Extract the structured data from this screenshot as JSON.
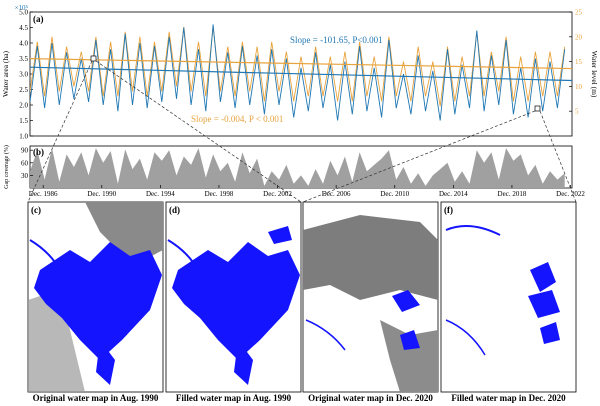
{
  "chart_data": [
    {
      "type": "line",
      "panel_label": "(a)",
      "ylabel": "Water area (ha)",
      "y2label": "Water level (m)",
      "y_exponent": "×10⁵",
      "ylim": [
        1.0,
        5.0
      ],
      "y2lim": [
        0,
        25
      ],
      "yticks": [
        "1.0",
        "1.5",
        "2.0",
        "2.5",
        "3.0",
        "3.5",
        "4.0",
        "4.5",
        "5.0"
      ],
      "y2ticks": [
        "5",
        "10",
        "15",
        "20",
        "25"
      ],
      "xlim": [
        1986,
        2023
      ],
      "series": [
        {
          "name": "Water area",
          "color": "#1f77b4",
          "axis": "left",
          "trend": {
            "start": 3.22,
            "end": 2.79
          },
          "annotation": "Slope = -101.65, P<0.001",
          "x": [
            1986.0,
            1986.5,
            1987.0,
            1987.5,
            1988.0,
            1988.5,
            1989.0,
            1989.5,
            1990.0,
            1990.5,
            1991.0,
            1991.5,
            1992.0,
            1992.5,
            1993.0,
            1993.5,
            1994.0,
            1994.5,
            1995.0,
            1995.5,
            1996.0,
            1996.5,
            1997.0,
            1997.5,
            1998.0,
            1998.5,
            1999.0,
            1999.5,
            2000.0,
            2000.5,
            2001.0,
            2001.5,
            2002.0,
            2002.5,
            2003.0,
            2003.5,
            2004.0,
            2004.5,
            2005.0,
            2005.5,
            2006.0,
            2006.5,
            2007.0,
            2007.5,
            2008.0,
            2008.5,
            2009.0,
            2009.5,
            2010.0,
            2010.5,
            2011.0,
            2011.5,
            2012.0,
            2012.5,
            2013.0,
            2013.5,
            2014.0,
            2014.5,
            2015.0,
            2015.5,
            2016.0,
            2016.5,
            2017.0,
            2017.5,
            2018.0,
            2018.5,
            2019.0,
            2019.5,
            2020.0,
            2020.5,
            2021.0,
            2021.5,
            2022.0,
            2022.5
          ],
          "values": [
            2.1,
            3.9,
            1.9,
            4.0,
            2.0,
            3.7,
            2.2,
            3.5,
            2.1,
            4.1,
            2.0,
            3.8,
            1.8,
            4.3,
            2.0,
            4.0,
            1.9,
            3.9,
            2.1,
            4.2,
            2.2,
            4.5,
            2.0,
            3.8,
            1.8,
            4.6,
            2.1,
            3.7,
            1.9,
            3.9,
            2.0,
            3.6,
            1.7,
            3.8,
            2.0,
            3.5,
            1.6,
            3.2,
            1.8,
            3.7,
            1.9,
            3.3,
            1.5,
            3.4,
            1.7,
            3.9,
            1.8,
            3.2,
            1.6,
            4.1,
            1.9,
            3.0,
            1.7,
            3.6,
            1.8,
            3.1,
            1.5,
            3.8,
            1.7,
            3.3,
            1.9,
            4.4,
            1.8,
            3.6,
            2.0,
            4.1,
            1.7,
            3.2,
            1.6,
            3.5,
            1.8,
            3.4,
            1.9,
            3.8
          ]
        },
        {
          "name": "Water level",
          "color": "#e8a33d",
          "axis": "right",
          "trend": {
            "start": 15.6,
            "end": 13.6
          },
          "annotation": "Slope = -0.004, P < 0.001",
          "x": [
            1986.0,
            1986.5,
            1987.0,
            1987.5,
            1988.0,
            1988.5,
            1989.0,
            1989.5,
            1990.0,
            1990.5,
            1991.0,
            1991.5,
            1992.0,
            1992.5,
            1993.0,
            1993.5,
            1994.0,
            1994.5,
            1995.0,
            1995.5,
            1996.0,
            1996.5,
            1997.0,
            1997.5,
            1998.0,
            1998.5,
            1999.0,
            1999.5,
            2000.0,
            2000.5,
            2001.0,
            2001.5,
            2002.0,
            2002.5,
            2003.0,
            2003.5,
            2004.0,
            2004.5,
            2005.0,
            2005.5,
            2006.0,
            2006.5,
            2007.0,
            2007.5,
            2008.0,
            2008.5,
            2009.0,
            2009.5,
            2010.0,
            2010.5,
            2011.0,
            2011.5,
            2012.0,
            2012.5,
            2013.0,
            2013.5,
            2014.0,
            2014.5,
            2015.0,
            2015.5,
            2016.0,
            2016.5,
            2017.0,
            2017.5,
            2018.0,
            2018.5,
            2019.0,
            2019.5,
            2020.0,
            2020.5,
            2021.0,
            2021.5,
            2022.0,
            2022.5
          ],
          "values": [
            9,
            19,
            8,
            20,
            9,
            18,
            10,
            17,
            9,
            20,
            8,
            19,
            8,
            21,
            9,
            20,
            8,
            19,
            9,
            21,
            10,
            22,
            9,
            19,
            8,
            22,
            9,
            18,
            8,
            19,
            9,
            18,
            7,
            19,
            9,
            17,
            7,
            16,
            8,
            18,
            8,
            16,
            7,
            17,
            7,
            19,
            8,
            16,
            7,
            20,
            8,
            15,
            7,
            18,
            8,
            15,
            6,
            18,
            7,
            16,
            8,
            21,
            8,
            17,
            9,
            20,
            7,
            16,
            7,
            17,
            8,
            17,
            8,
            18
          ]
        }
      ]
    },
    {
      "type": "area",
      "panel_label": "(b)",
      "ylabel": "Gap coverage (%)",
      "ylim": [
        0,
        100
      ],
      "yticks": [
        "30",
        "60",
        "90"
      ],
      "xlim": [
        1986,
        2023
      ],
      "xticks": [
        {
          "label": "Dec. 1986",
          "x": 1986.9
        },
        {
          "label": "Dec. 1990",
          "x": 1990.9
        },
        {
          "label": "Dec. 1994",
          "x": 1994.9
        },
        {
          "label": "Dec. 1998",
          "x": 1998.9
        },
        {
          "label": "Dec. 2002",
          "x": 2002.9
        },
        {
          "label": "Dec. 2006",
          "x": 2006.9
        },
        {
          "label": "Dec. 2010",
          "x": 2010.9
        },
        {
          "label": "Dec. 2014",
          "x": 2014.9
        },
        {
          "label": "Dec. 2018",
          "x": 2018.9
        },
        {
          "label": "Dec. 2022",
          "x": 2022.9
        }
      ],
      "color": "#a0a0a0",
      "x": [
        1986.0,
        1986.5,
        1987.0,
        1987.5,
        1988.0,
        1988.5,
        1989.0,
        1989.5,
        1990.0,
        1990.5,
        1991.0,
        1991.5,
        1992.0,
        1992.5,
        1993.0,
        1993.5,
        1994.0,
        1994.5,
        1995.0,
        1995.5,
        1996.0,
        1996.5,
        1997.0,
        1997.5,
        1998.0,
        1998.5,
        1999.0,
        1999.5,
        2000.0,
        2000.5,
        2001.0,
        2001.5,
        2002.0,
        2002.5,
        2003.0,
        2003.5,
        2004.0,
        2004.5,
        2005.0,
        2005.5,
        2006.0,
        2006.5,
        2007.0,
        2007.5,
        2008.0,
        2008.5,
        2009.0,
        2009.5,
        2010.0,
        2010.5,
        2011.0,
        2011.5,
        2012.0,
        2012.5,
        2013.0,
        2013.5,
        2014.0,
        2014.5,
        2015.0,
        2015.5,
        2016.0,
        2016.5,
        2017.0,
        2017.5,
        2018.0,
        2018.5,
        2019.0,
        2019.5,
        2020.0,
        2020.5,
        2021.0,
        2021.5,
        2022.0,
        2022.5
      ],
      "values": [
        40,
        90,
        20,
        95,
        15,
        80,
        50,
        85,
        30,
        95,
        60,
        88,
        10,
        92,
        45,
        70,
        20,
        85,
        65,
        90,
        30,
        75,
        55,
        95,
        25,
        80,
        40,
        60,
        15,
        85,
        35,
        70,
        5,
        40,
        20,
        55,
        10,
        30,
        5,
        45,
        10,
        65,
        30,
        75,
        15,
        85,
        40,
        55,
        70,
        90,
        20,
        50,
        10,
        35,
        5,
        30,
        45,
        60,
        15,
        40,
        10,
        90,
        60,
        85,
        20,
        95,
        65,
        80,
        30,
        55,
        10,
        40,
        20,
        35
      ]
    },
    {
      "type": "image",
      "panel_label": "(c)",
      "caption": "Original water map in Aug. 1990"
    },
    {
      "type": "image",
      "panel_label": "(d)",
      "caption": "Filled water map in Aug. 1990"
    },
    {
      "type": "image",
      "panel_label": "(e)",
      "caption": "Original water map in Dec. 2020"
    },
    {
      "type": "image",
      "panel_label": "(f)",
      "caption": "Filled water map in Dec. 2020"
    }
  ]
}
